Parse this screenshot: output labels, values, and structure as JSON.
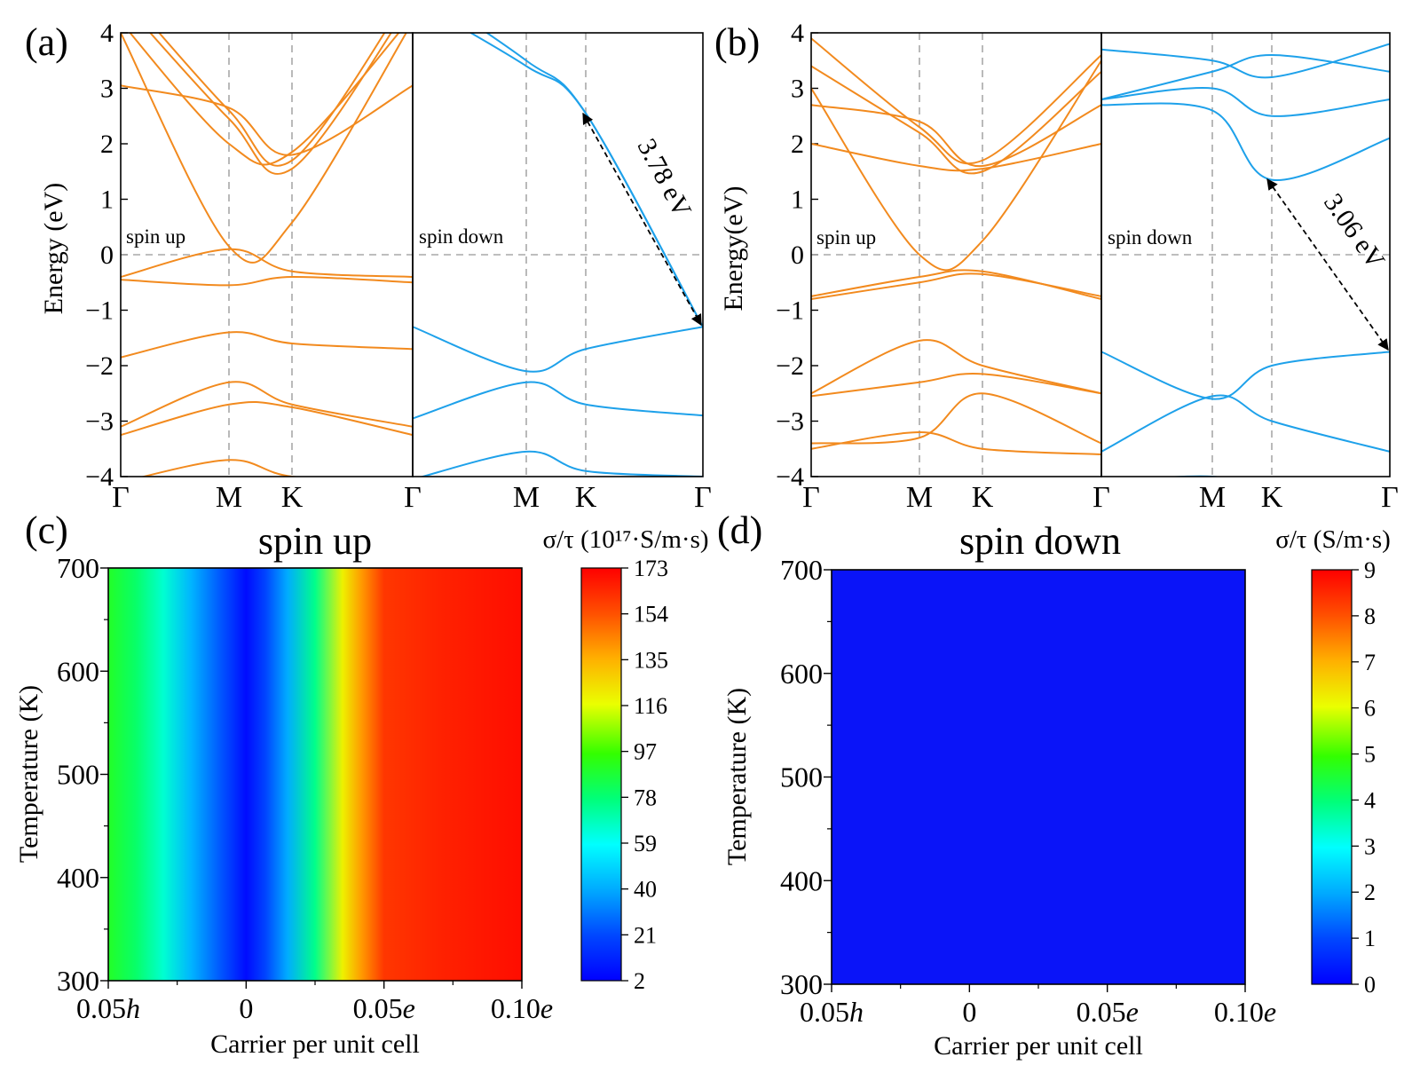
{
  "chart_data": [
    {
      "panel": "(a)",
      "type": "line",
      "ylabel": "Energy (eV)",
      "ylim": [
        -4,
        4
      ],
      "yticks": [
        "4",
        "3",
        "2",
        "1",
        "0",
        "−1",
        "−2",
        "−3",
        "−4"
      ],
      "kpoints": [
        "Γ",
        "M",
        "K",
        "Γ",
        "M",
        "K",
        "Γ"
      ],
      "left_label": "spin up",
      "right_label": "spin down",
      "gap_label": "3.78 eV",
      "colors": {
        "spin_up": "#f28a1e",
        "spin_down": "#1ea1ea"
      },
      "series": [
        {
          "spin": "up",
          "values": [
            3.05,
            2.65,
            1.8,
            3.05
          ]
        },
        {
          "spin": "up",
          "values": [
            4.8,
            2.6,
            1.7,
            4.8
          ]
        },
        {
          "spin": "up",
          "values": [
            4.6,
            2.45,
            1.55,
            4.6
          ]
        },
        {
          "spin": "up",
          "values": [
            4.2,
            2.0,
            1.85,
            4.3
          ]
        },
        {
          "spin": "up",
          "values": [
            4.0,
            0.15,
            0.58,
            4.2
          ]
        },
        {
          "spin": "up",
          "values": [
            -0.4,
            0.1,
            -0.3,
            -0.4
          ]
        },
        {
          "spin": "up",
          "values": [
            -0.45,
            -0.55,
            -0.4,
            -0.5
          ]
        },
        {
          "spin": "up",
          "values": [
            -1.85,
            -1.4,
            -1.6,
            -1.7
          ]
        },
        {
          "spin": "up",
          "values": [
            -3.1,
            -2.3,
            -2.7,
            -3.1
          ]
        },
        {
          "spin": "up",
          "values": [
            -3.25,
            -2.7,
            -2.75,
            -3.25
          ]
        },
        {
          "spin": "up",
          "values": [
            -4.1,
            -3.7,
            -4.0,
            -4.1
          ]
        },
        {
          "spin_": "down",
          "spin": "down",
          "values": [
            4.6,
            3.4,
            2.55,
            -1.3
          ]
        },
        {
          "spin": "down",
          "values": [
            4.9,
            3.5,
            2.55,
            -1.3
          ]
        },
        {
          "spin": "down",
          "values": [
            -1.3,
            -2.1,
            -1.7,
            -1.3
          ]
        },
        {
          "spin": "down",
          "values": [
            -2.95,
            -2.3,
            -2.7,
            -2.9
          ]
        },
        {
          "spin": "down",
          "values": [
            -4.05,
            -3.55,
            -3.9,
            -4.0
          ]
        }
      ]
    },
    {
      "panel": "(b)",
      "type": "line",
      "ylabel": "Energy(eV)",
      "ylim": [
        -4,
        4
      ],
      "yticks": [
        "4",
        "3",
        "2",
        "1",
        "0",
        "−1",
        "−2",
        "−3",
        "−4"
      ],
      "kpoints": [
        "Γ",
        "M",
        "K",
        "Γ",
        "M",
        "K",
        "Γ"
      ],
      "left_label": "spin up",
      "right_label": "spin down",
      "gap_label": "3.06 eV",
      "colors": {
        "spin_up": "#f28a1e",
        "spin_down": "#1ea1ea"
      },
      "series": [
        {
          "spin": "up",
          "values": [
            2.7,
            2.4,
            1.6,
            2.7
          ]
        },
        {
          "spin": "up",
          "values": [
            3.9,
            2.3,
            1.7,
            3.6
          ]
        },
        {
          "spin": "up",
          "values": [
            3.4,
            2.2,
            1.5,
            3.3
          ]
        },
        {
          "spin": "up",
          "values": [
            2.0,
            1.6,
            1.55,
            2.0
          ]
        },
        {
          "spin": "up",
          "values": [
            3.0,
            0.0,
            0.25,
            3.5
          ]
        },
        {
          "spin": "up",
          "values": [
            -0.75,
            -0.4,
            -0.3,
            -0.8
          ]
        },
        {
          "spin": "up",
          "values": [
            -0.8,
            -0.5,
            -0.35,
            -0.75
          ]
        },
        {
          "spin": "up",
          "values": [
            -2.5,
            -1.55,
            -2.0,
            -2.5
          ]
        },
        {
          "spin": "up",
          "values": [
            -2.55,
            -2.3,
            -2.15,
            -2.5
          ]
        },
        {
          "spin": "up",
          "values": [
            -3.4,
            -3.3,
            -2.5,
            -3.4
          ]
        },
        {
          "spin": "up",
          "values": [
            -3.5,
            -3.2,
            -3.5,
            -3.6
          ]
        },
        {
          "spin": "down",
          "values": [
            2.7,
            2.6,
            1.35,
            2.1
          ]
        },
        {
          "spin": "down",
          "values": [
            2.8,
            3.3,
            3.6,
            3.3
          ]
        },
        {
          "spin": "down",
          "values": [
            3.7,
            3.5,
            3.2,
            3.8
          ]
        },
        {
          "spin": "down",
          "values": [
            2.8,
            3.0,
            2.5,
            2.8
          ]
        },
        {
          "spin": "down",
          "values": [
            -1.75,
            -2.6,
            -2.0,
            -1.75
          ]
        },
        {
          "spin": "down",
          "values": [
            -3.55,
            -2.55,
            -3.0,
            -3.55
          ]
        },
        {
          "spin": "down",
          "values": [
            -4.1,
            -4.0,
            -4.3,
            -4.1
          ]
        }
      ]
    },
    {
      "panel": "(c)",
      "type": "heatmap",
      "title": "spin up",
      "xlabel": "Carrier per unit cell",
      "ylabel": "Temperature (K)",
      "xticks": [
        {
          "num": "0.05",
          "suffix": "h"
        },
        {
          "num": "0",
          "suffix": ""
        },
        {
          "num": "0.05",
          "suffix": "e"
        },
        {
          "num": "0.10",
          "suffix": "e"
        }
      ],
      "yticks": [
        "700",
        "600",
        "500",
        "400",
        "300"
      ],
      "ylim": [
        300,
        700
      ],
      "colorbar_label": "σ/τ (10¹⁷·S/m·s)",
      "colorbar_ticks": [
        "173",
        "154",
        "135",
        "116",
        "97",
        "78",
        "59",
        "40",
        "21",
        "2"
      ],
      "clim": [
        2,
        173
      ],
      "columns": [
        {
          "x": -0.05,
          "v": 90
        },
        {
          "x": -0.04,
          "v": 80
        },
        {
          "x": -0.03,
          "v": 65
        },
        {
          "x": -0.02,
          "v": 42
        },
        {
          "x": -0.01,
          "v": 25
        },
        {
          "x": 0.0,
          "v": 5
        },
        {
          "x": 0.007,
          "v": 20
        },
        {
          "x": 0.015,
          "v": 40
        },
        {
          "x": 0.025,
          "v": 75
        },
        {
          "x": 0.035,
          "v": 120
        },
        {
          "x": 0.042,
          "v": 140
        },
        {
          "x": 0.05,
          "v": 160
        },
        {
          "x": 0.07,
          "v": 165
        },
        {
          "x": 0.1,
          "v": 170
        }
      ]
    },
    {
      "panel": "(d)",
      "type": "heatmap",
      "title": "spin down",
      "xlabel": "Carrier per unit cell",
      "ylabel": "Temperature (K)",
      "xticks": [
        {
          "num": "0.05",
          "suffix": "h"
        },
        {
          "num": "0",
          "suffix": ""
        },
        {
          "num": "0.05",
          "suffix": "e"
        },
        {
          "num": "0.10",
          "suffix": "e"
        }
      ],
      "yticks": [
        "700",
        "600",
        "500",
        "400",
        "300"
      ],
      "ylim": [
        300,
        700
      ],
      "colorbar_label": "σ/τ (S/m·s)",
      "colorbar_ticks": [
        "9",
        "8",
        "7",
        "6",
        "5",
        "4",
        "3",
        "2",
        "1",
        "0"
      ],
      "clim": [
        0,
        9
      ],
      "fill_color": "#0a14f8"
    }
  ]
}
